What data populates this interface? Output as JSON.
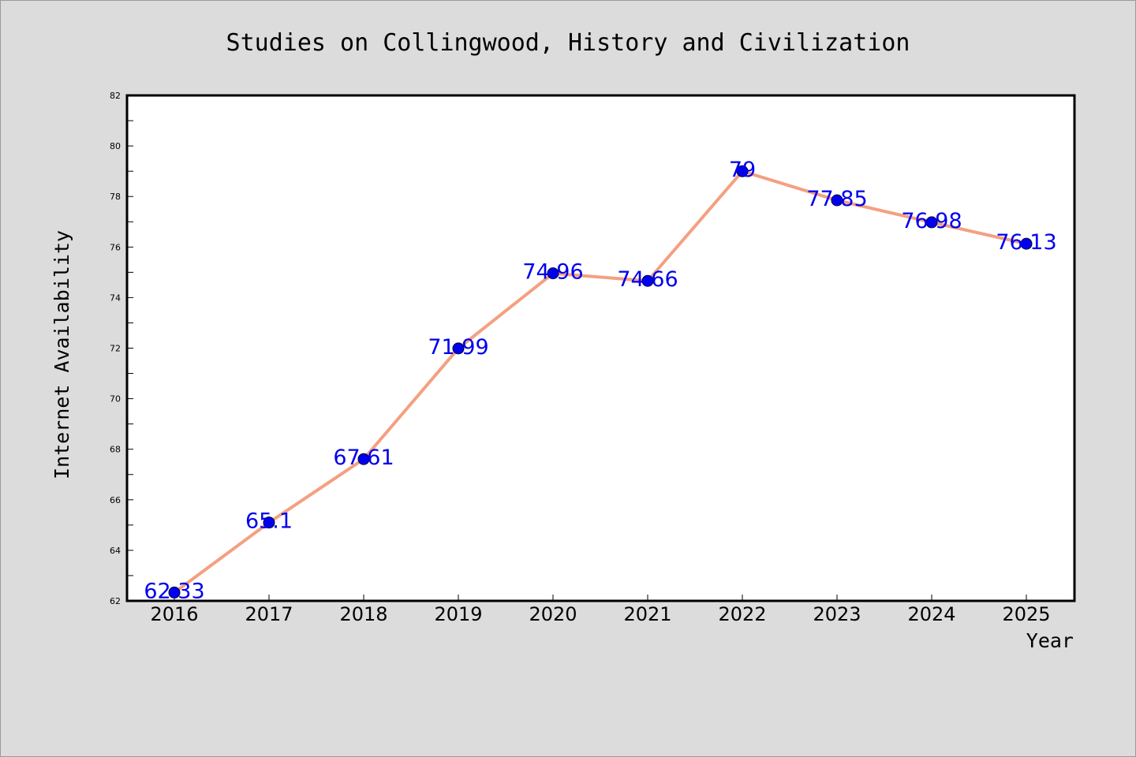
{
  "chart_data": {
    "type": "line",
    "title": "Studies on Collingwood, History and Civilization",
    "xlabel": "Year",
    "ylabel": "Internet Availability",
    "categories": [
      "2016",
      "2017",
      "2018",
      "2019",
      "2020",
      "2021",
      "2022",
      "2023",
      "2024",
      "2025"
    ],
    "series": [
      {
        "values": [
          62.33,
          65.1,
          67.61,
          71.99,
          74.96,
          74.66,
          79,
          77.85,
          76.98,
          76.13
        ],
        "labels": [
          "62.33",
          "65.1",
          "67.61",
          "71.99",
          "74.96",
          "74.66",
          "79",
          "77.85",
          "76.98",
          "76.13"
        ],
        "line_color": "#f4a080",
        "marker_color": "#0000ee",
        "label_color": "#0000ee"
      }
    ],
    "ylim": [
      62,
      82
    ],
    "yticks": [
      62,
      64,
      66,
      68,
      70,
      72,
      74,
      76,
      78,
      80,
      82
    ],
    "grid": false,
    "legend": "none",
    "background": "#dcdcdc",
    "plot_background": "#ffffff"
  }
}
